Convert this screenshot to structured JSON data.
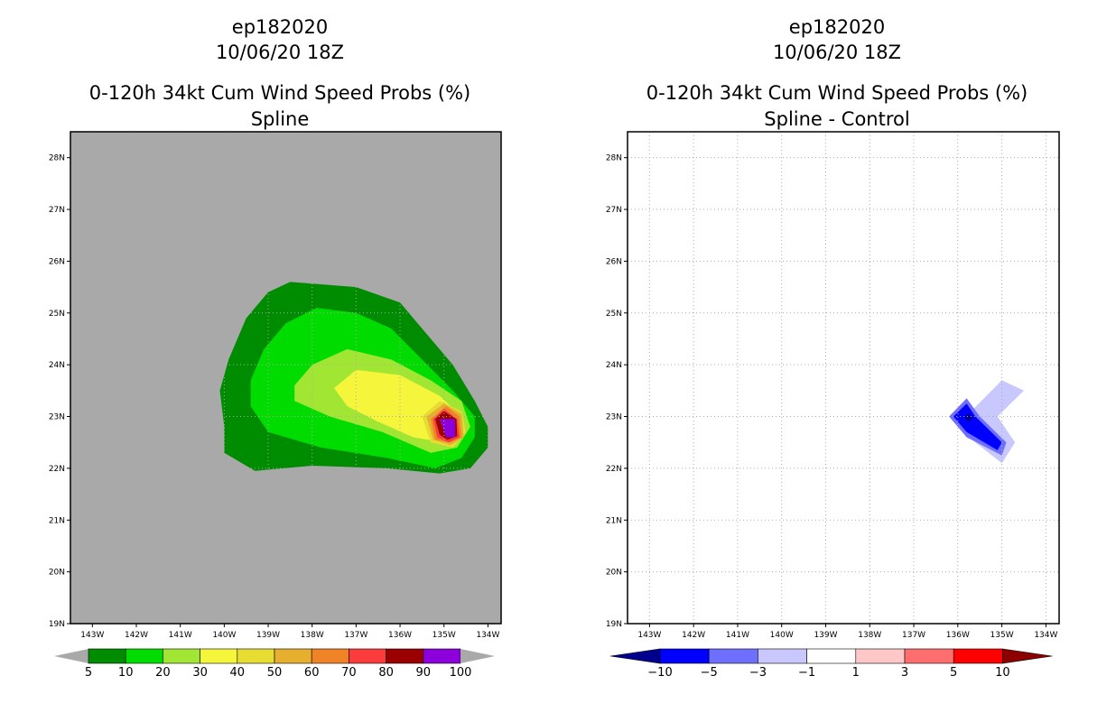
{
  "chart_data": [
    {
      "type": "contour",
      "id": "storm",
      "title_line1": "ep182020",
      "title_line2": "10/06/20 18Z",
      "title_line3": "0-120h 34kt Cum Wind Speed Probs (%)",
      "subtitle": "Spline",
      "background_color": "#a9a9a9",
      "x_ticks": [
        "143W",
        "142W",
        "141W",
        "140W",
        "139W",
        "138W",
        "137W",
        "136W",
        "135W",
        "134W"
      ],
      "x_values": [
        -143,
        -142,
        -141,
        -140,
        -139,
        -138,
        -137,
        -136,
        -135,
        -134
      ],
      "y_ticks": [
        "19N",
        "20N",
        "21N",
        "22N",
        "23N",
        "24N",
        "25N",
        "26N",
        "27N",
        "28N"
      ],
      "y_values": [
        19,
        20,
        21,
        22,
        23,
        24,
        25,
        26,
        27,
        28
      ],
      "xlim": [
        -143.5,
        -133.7
      ],
      "ylim": [
        19,
        28.5
      ],
      "levels": [
        {
          "value": 5,
          "color": "#008c00",
          "polygon": [
            [
              -140.1,
              23.5
            ],
            [
              -139.9,
              24.1
            ],
            [
              -139.5,
              24.9
            ],
            [
              -139.0,
              25.4
            ],
            [
              -138.5,
              25.6
            ],
            [
              -137.0,
              25.5
            ],
            [
              -136.0,
              25.2
            ],
            [
              -135.5,
              24.7
            ],
            [
              -134.8,
              24.0
            ],
            [
              -134.3,
              23.3
            ],
            [
              -134.0,
              22.8
            ],
            [
              -134.0,
              22.4
            ],
            [
              -134.4,
              22.0
            ],
            [
              -135.1,
              21.9
            ],
            [
              -136.3,
              22.0
            ],
            [
              -138.0,
              22.05
            ],
            [
              -139.3,
              21.95
            ],
            [
              -140.0,
              22.3
            ],
            [
              -140.0,
              22.8
            ]
          ]
        },
        {
          "value": 10,
          "color": "#00dc00",
          "polygon": [
            [
              -139.4,
              23.7
            ],
            [
              -139.1,
              24.3
            ],
            [
              -138.6,
              24.8
            ],
            [
              -137.9,
              25.1
            ],
            [
              -137.0,
              25.0
            ],
            [
              -136.2,
              24.7
            ],
            [
              -135.5,
              24.1
            ],
            [
              -134.8,
              23.5
            ],
            [
              -134.3,
              23.0
            ],
            [
              -134.3,
              22.6
            ],
            [
              -134.6,
              22.2
            ],
            [
              -135.2,
              22.0
            ],
            [
              -136.3,
              22.2
            ],
            [
              -137.8,
              22.4
            ],
            [
              -139.0,
              22.7
            ],
            [
              -139.4,
              23.2
            ]
          ]
        },
        {
          "value": 20,
          "color": "#a0e632",
          "polygon": [
            [
              -138.4,
              23.6
            ],
            [
              -138.0,
              24.0
            ],
            [
              -137.2,
              24.3
            ],
            [
              -136.2,
              24.1
            ],
            [
              -135.3,
              23.7
            ],
            [
              -134.6,
              23.3
            ],
            [
              -134.4,
              22.8
            ],
            [
              -134.7,
              22.4
            ],
            [
              -135.3,
              22.3
            ],
            [
              -136.4,
              22.7
            ],
            [
              -137.6,
              23.0
            ],
            [
              -138.4,
              23.3
            ]
          ]
        },
        {
          "value": 30,
          "color": "#f5f53c",
          "polygon": [
            [
              -137.5,
              23.55
            ],
            [
              -137.0,
              23.9
            ],
            [
              -136.0,
              23.8
            ],
            [
              -135.1,
              23.4
            ],
            [
              -134.6,
              23.0
            ],
            [
              -134.6,
              22.7
            ],
            [
              -135.0,
              22.5
            ],
            [
              -135.7,
              22.6
            ],
            [
              -136.5,
              22.9
            ],
            [
              -137.2,
              23.2
            ]
          ]
        },
        {
          "value": 40,
          "color": "#e6dc32",
          "polygon": [
            [
              -135.5,
              23.0
            ],
            [
              -135.1,
              23.3
            ],
            [
              -134.6,
              23.1
            ],
            [
              -134.5,
              22.7
            ],
            [
              -134.8,
              22.4
            ],
            [
              -135.3,
              22.5
            ]
          ]
        },
        {
          "value": 50,
          "color": "#e6af2d",
          "polygon": [
            [
              -135.4,
              23.0
            ],
            [
              -135.0,
              23.25
            ],
            [
              -134.6,
              23.05
            ],
            [
              -134.55,
              22.6
            ],
            [
              -134.85,
              22.45
            ],
            [
              -135.25,
              22.55
            ]
          ]
        },
        {
          "value": 60,
          "color": "#f08228",
          "polygon": [
            [
              -135.3,
              22.95
            ],
            [
              -134.95,
              23.2
            ],
            [
              -134.65,
              23.0
            ],
            [
              -134.6,
              22.6
            ],
            [
              -134.85,
              22.5
            ],
            [
              -135.2,
              22.55
            ]
          ]
        },
        {
          "value": 70,
          "color": "#fa3c3c",
          "polygon": [
            [
              -135.25,
              22.95
            ],
            [
              -135.0,
              23.15
            ],
            [
              -134.7,
              22.95
            ],
            [
              -134.65,
              22.6
            ],
            [
              -134.9,
              22.5
            ],
            [
              -135.15,
              22.6
            ]
          ]
        },
        {
          "value": 80,
          "color": "#9b0000",
          "polygon": [
            [
              -135.2,
              22.95
            ],
            [
              -135.0,
              23.1
            ],
            [
              -134.72,
              22.95
            ],
            [
              -134.7,
              22.62
            ],
            [
              -134.92,
              22.55
            ],
            [
              -135.1,
              22.65
            ]
          ]
        },
        {
          "value": 90,
          "color": "#8c00dc",
          "polygon": [
            [
              -135.1,
              22.95
            ],
            [
              -134.75,
              22.95
            ],
            [
              -134.75,
              22.6
            ],
            [
              -134.95,
              22.6
            ]
          ]
        }
      ],
      "colorbar": {
        "colors": [
          "#008c00",
          "#00dc00",
          "#a0e632",
          "#f5f53c",
          "#e6dc32",
          "#e6af2d",
          "#f08228",
          "#fa3c3c",
          "#9b0000",
          "#8c00dc"
        ],
        "labels": [
          "5",
          "10",
          "20",
          "30",
          "40",
          "50",
          "60",
          "70",
          "80",
          "90",
          "100"
        ],
        "end_color": "#a9a9a9"
      }
    },
    {
      "type": "contour",
      "id": "diff",
      "title_line1": "ep182020",
      "title_line2": "10/06/20 18Z",
      "title_line3": "0-120h 34kt Cum Wind Speed Probs (%)",
      "subtitle": "Spline - Control",
      "background_color": "#ffffff",
      "x_ticks": [
        "143W",
        "142W",
        "141W",
        "140W",
        "139W",
        "138W",
        "137W",
        "136W",
        "135W",
        "134W"
      ],
      "x_values": [
        -143,
        -142,
        -141,
        -140,
        -139,
        -138,
        -137,
        -136,
        -135,
        -134
      ],
      "y_ticks": [
        "19N",
        "20N",
        "21N",
        "22N",
        "23N",
        "24N",
        "25N",
        "26N",
        "27N",
        "28N"
      ],
      "y_values": [
        19,
        20,
        21,
        22,
        23,
        24,
        25,
        26,
        27,
        28
      ],
      "xlim": [
        -143.5,
        -133.7
      ],
      "ylim": [
        19,
        28.5
      ],
      "levels": [
        {
          "value": -1,
          "color": "#c8c8ff",
          "polygon": [
            [
              -135.7,
              23.1
            ],
            [
              -135.0,
              23.7
            ],
            [
              -134.5,
              23.5
            ],
            [
              -135.1,
              23.0
            ],
            [
              -134.7,
              22.5
            ],
            [
              -135.0,
              22.1
            ],
            [
              -135.6,
              22.5
            ]
          ]
        },
        {
          "value": -3,
          "color": "#6e6eff",
          "polygon": [
            [
              -136.2,
              23.0
            ],
            [
              -135.8,
              23.35
            ],
            [
              -135.5,
              23.0
            ],
            [
              -134.9,
              22.5
            ],
            [
              -135.0,
              22.25
            ],
            [
              -135.8,
              22.6
            ]
          ]
        },
        {
          "value": -5,
          "color": "#0000ff",
          "polygon": [
            [
              -136.1,
              23.0
            ],
            [
              -135.8,
              23.25
            ],
            [
              -135.6,
              23.0
            ],
            [
              -135.0,
              22.5
            ],
            [
              -135.1,
              22.35
            ],
            [
              -135.8,
              22.7
            ]
          ]
        },
        {
          "value": -10,
          "color": "#00008c",
          "polygon": [
            [
              -135.85,
              22.98
            ],
            [
              -135.75,
              23.06
            ],
            [
              -135.65,
              22.98
            ],
            [
              -135.75,
              22.9
            ]
          ]
        }
      ],
      "colorbar": {
        "colors": [
          "#00008c",
          "#0000ff",
          "#6e6eff",
          "#c8c8ff",
          "#ffffff",
          "#ffc8c8",
          "#ff6e6e",
          "#ff0000",
          "#8c0000"
        ],
        "labels": [
          "-10",
          "-5",
          "-3",
          "-1",
          "1",
          "3",
          "5",
          "10"
        ]
      }
    }
  ]
}
